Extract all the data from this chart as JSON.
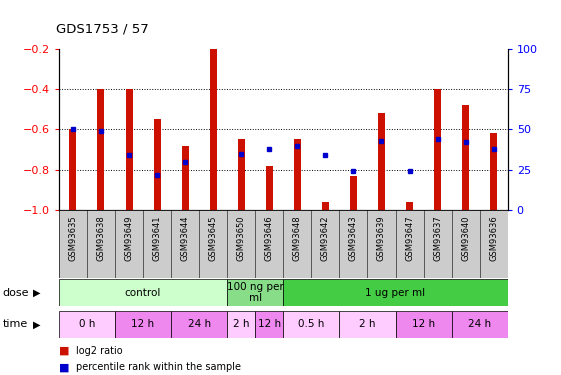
{
  "title": "GDS1753 / 57",
  "samples": [
    "GSM93635",
    "GSM93638",
    "GSM93649",
    "GSM93641",
    "GSM93644",
    "GSM93645",
    "GSM93650",
    "GSM93646",
    "GSM93648",
    "GSM93642",
    "GSM93643",
    "GSM93639",
    "GSM93647",
    "GSM93637",
    "GSM93640",
    "GSM93636"
  ],
  "log2_ratio": [
    -0.6,
    -0.4,
    -0.4,
    -0.55,
    -0.68,
    -0.2,
    -0.65,
    -0.78,
    -0.65,
    -0.96,
    -0.83,
    -0.52,
    -0.96,
    -0.4,
    -0.48,
    -0.62
  ],
  "percentile_rank": [
    50,
    49,
    34,
    22,
    30,
    null,
    35,
    38,
    40,
    34,
    24,
    43,
    24,
    44,
    42,
    38
  ],
  "ylim_left": [
    -1.0,
    -0.2
  ],
  "ylim_right": [
    0,
    100
  ],
  "yticks_left": [
    -1.0,
    -0.8,
    -0.6,
    -0.4,
    -0.2
  ],
  "yticks_right": [
    0,
    25,
    50,
    75,
    100
  ],
  "dose_groups": [
    {
      "label": "control",
      "start": 0,
      "end": 6,
      "color": "#ccffcc"
    },
    {
      "label": "100 ng per\nml",
      "start": 6,
      "end": 8,
      "color": "#88dd88"
    },
    {
      "label": "1 ug per ml",
      "start": 8,
      "end": 16,
      "color": "#44cc44"
    }
  ],
  "time_groups": [
    {
      "label": "0 h",
      "start": 0,
      "end": 2,
      "color": "#ffccff"
    },
    {
      "label": "12 h",
      "start": 2,
      "end": 4,
      "color": "#ee88ee"
    },
    {
      "label": "24 h",
      "start": 4,
      "end": 6,
      "color": "#ee88ee"
    },
    {
      "label": "2 h",
      "start": 6,
      "end": 7,
      "color": "#ffccff"
    },
    {
      "label": "12 h",
      "start": 7,
      "end": 8,
      "color": "#ee88ee"
    },
    {
      "label": "0.5 h",
      "start": 8,
      "end": 10,
      "color": "#ffccff"
    },
    {
      "label": "2 h",
      "start": 10,
      "end": 12,
      "color": "#ffccff"
    },
    {
      "label": "12 h",
      "start": 12,
      "end": 14,
      "color": "#ee88ee"
    },
    {
      "label": "24 h",
      "start": 14,
      "end": 16,
      "color": "#ee88ee"
    }
  ],
  "bar_color": "#cc1100",
  "dot_color": "#0000cc",
  "background_color": "#ffffff",
  "tick_label_bg": "#cccccc",
  "legend_items": [
    {
      "label": "log2 ratio",
      "color": "#cc1100"
    },
    {
      "label": "percentile rank within the sample",
      "color": "#0000cc"
    }
  ]
}
